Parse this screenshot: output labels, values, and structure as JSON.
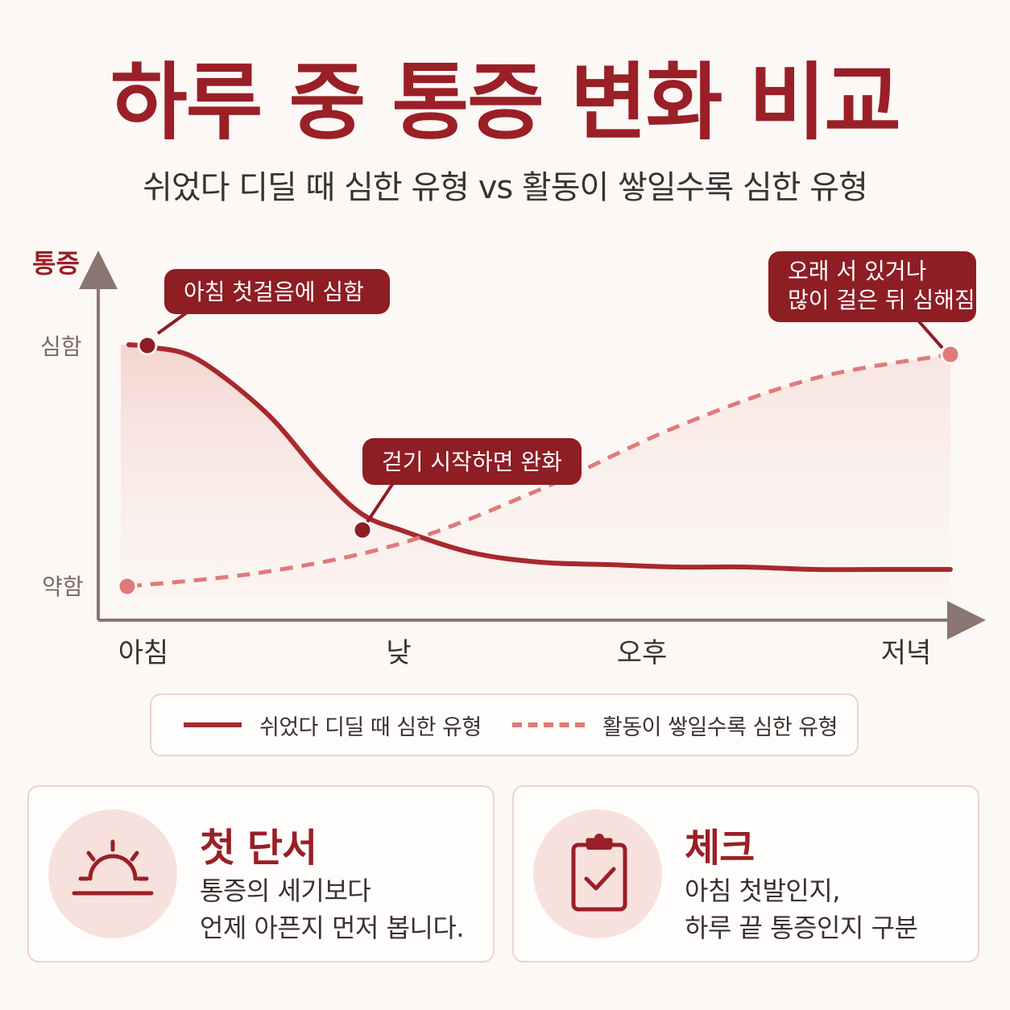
{
  "title": "하루 중 통증 변화 비교",
  "subtitle": "쉬었다 디딜 때 심한 유형 vs 활동이 쌓일수록 심한 유형",
  "colors": {
    "accent": "#9a1f27",
    "solid_line": "#a8282e",
    "dashed_line": "#e07a7a",
    "fill": "#f6dad6"
  },
  "chart_data": {
    "type": "line",
    "ylabel": "통증",
    "y_ticks": [
      "약함",
      "심함"
    ],
    "categories": [
      "아침",
      "낮",
      "오후",
      "저녁"
    ],
    "ylim": [
      0,
      1
    ],
    "series": [
      {
        "name": "쉬었다 디딜 때 심한 유형",
        "style": "solid",
        "x": [
          0,
          0.08,
          0.25,
          0.5,
          0.7,
          0.85,
          1.0,
          1.25,
          1.5,
          1.75,
          2.0,
          2.25,
          2.5,
          2.75,
          3.0
        ],
        "y": [
          1.0,
          0.99,
          0.94,
          0.72,
          0.46,
          0.3,
          0.23,
          0.14,
          0.1,
          0.09,
          0.08,
          0.08,
          0.07,
          0.07,
          0.07
        ]
      },
      {
        "name": "활동이 쌓일수록 심한 유형",
        "style": "dashed",
        "x": [
          0,
          0.5,
          1.0,
          1.5,
          2.0,
          2.5,
          3.0
        ],
        "y": [
          0.0,
          0.06,
          0.18,
          0.4,
          0.66,
          0.86,
          0.96
        ]
      }
    ],
    "annotations": [
      {
        "text": "아침 첫걸음에 심함"
      },
      {
        "text": "걷기 시작하면 완화"
      },
      {
        "text_lines": [
          "오래 서 있거나",
          "많이 걸은 뒤 심해짐"
        ]
      }
    ]
  },
  "legend": [
    {
      "label": "쉬었다 디딜 때 심한 유형"
    },
    {
      "label": "활동이 쌓일수록 심한 유형"
    }
  ],
  "cards": [
    {
      "icon": "sunrise-icon",
      "title": "첫 단서",
      "lines": [
        "통증의 세기보다",
        "언제 아픈지 먼저 봅니다."
      ]
    },
    {
      "icon": "clipboard-check-icon",
      "title": "체크",
      "lines": [
        "아침 첫발인지,",
        "하루 끝 통증인지 구분"
      ]
    }
  ]
}
